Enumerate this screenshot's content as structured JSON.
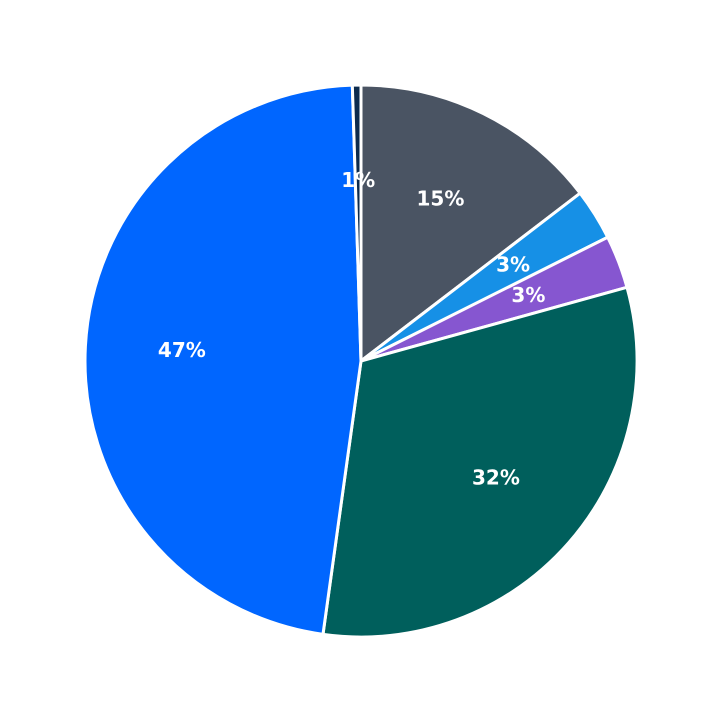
{
  "chart_data": {
    "type": "pie",
    "values": [
      14.6,
      3,
      3.1,
      31.5,
      47.3,
      0.5
    ],
    "value_labels": [
      "15%",
      "3%",
      "3%",
      "32%",
      "47%",
      "1%"
    ],
    "colors": [
      "#4a5463",
      "#1690e6",
      "#8656d0",
      "#005f5c",
      "#0066ff",
      "#0d2b4d"
    ],
    "start": "top",
    "direction": "clockwise"
  }
}
